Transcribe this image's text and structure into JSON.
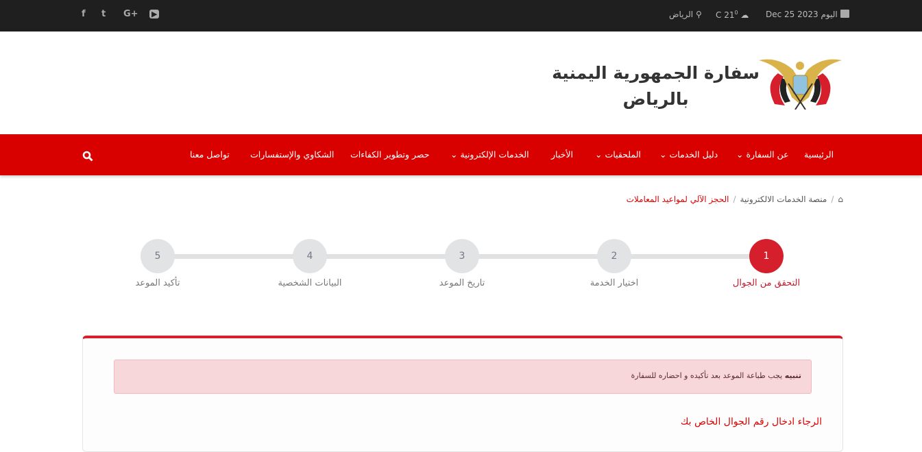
{
  "topbar": {
    "date_icon": "calendar-icon",
    "today_label": "اليوم",
    "date": "Dec 25 2023",
    "weather_icon": "cloud-icon",
    "temperature": "21",
    "degree_sup": "0",
    "unit": "C",
    "location_icon": "map-marker-icon",
    "city": "الرياض",
    "social": [
      {
        "icon": "facebook-icon",
        "glyph": "f"
      },
      {
        "icon": "twitter-icon",
        "glyph": "t"
      },
      {
        "icon": "google-plus-icon",
        "glyph": "G+"
      },
      {
        "icon": "youtube-icon",
        "glyph": "▶"
      }
    ]
  },
  "header": {
    "title_line1": "سفارة الجمهورية اليمنية",
    "title_line2": "بالرياض"
  },
  "nav": {
    "items": [
      {
        "label": "الرئيسية",
        "dropdown": false
      },
      {
        "label": "عن السفارة",
        "dropdown": true
      },
      {
        "label": "دليل الخدمات",
        "dropdown": true
      },
      {
        "label": "الملحقيات",
        "dropdown": true
      },
      {
        "label": "الأخبار",
        "dropdown": false
      },
      {
        "label": "الخدمات الإلكترونية",
        "dropdown": true
      },
      {
        "label": "حصر وتطوير الكفاءات",
        "dropdown": false
      },
      {
        "label": "الشكاوي والإستفسارات",
        "dropdown": false
      },
      {
        "label": "تواصل معنا",
        "dropdown": false
      }
    ],
    "search_icon": "search-icon",
    "chevron": "⌄"
  },
  "breadcrumb": {
    "home_icon": "home-icon",
    "items": [
      "منصة الخدمات الالكترونية",
      "الحجز الآلي لمواعيد المعاملات"
    ],
    "separator": "/"
  },
  "steps": [
    {
      "number": "1",
      "label": "التحقق من الجوال",
      "active": true
    },
    {
      "number": "2",
      "label": "اختيار الخدمة",
      "active": false
    },
    {
      "number": "3",
      "label": "تاريخ الموعد",
      "active": false
    },
    {
      "number": "4",
      "label": "البيانات الشخصية",
      "active": false
    },
    {
      "number": "5",
      "label": "تأكيد الموعد",
      "active": false
    }
  ],
  "alert": {
    "strong": "تنبيه",
    "text": " يجب طباعة الموعد بعد تأكيده و احضاره للسفارة"
  },
  "form": {
    "prompt": "الرجاء ادخال رقم الجوال الخاص بك"
  },
  "colors": {
    "primary": "#d90000",
    "accent": "#d61f2c",
    "topbar": "#1f1f1f"
  }
}
